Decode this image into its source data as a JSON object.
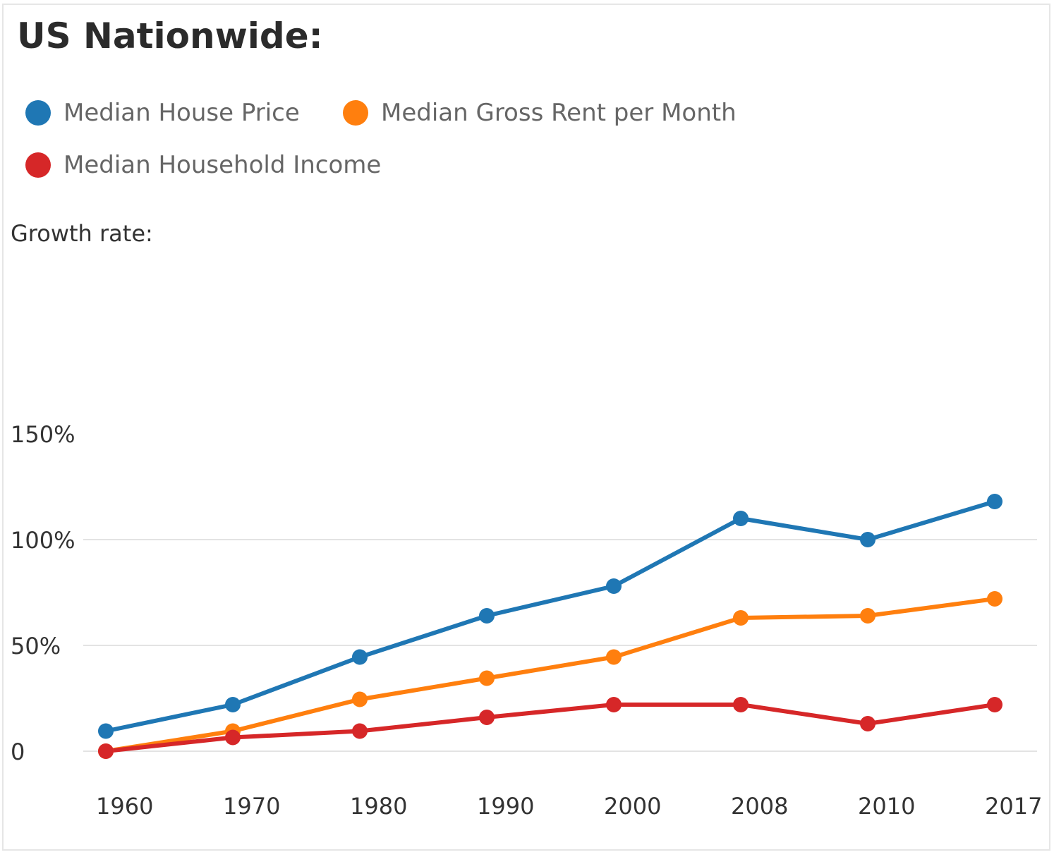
{
  "title": "US Nationwide:",
  "chart_data": {
    "type": "line",
    "title": "US Nationwide:",
    "ylabel": "Growth rate:",
    "xlabel": "",
    "categories": [
      "1960",
      "1970",
      "1980",
      "1990",
      "2000",
      "2008",
      "2010",
      "2017"
    ],
    "yticks": [
      {
        "value": 0,
        "label": "0"
      },
      {
        "value": 50,
        "label": "50%"
      },
      {
        "value": 100,
        "label": "100%"
      },
      {
        "value": 150,
        "label": "150%"
      }
    ],
    "ylim": [
      0,
      150
    ],
    "grid": true,
    "legend_position": "top-left",
    "series": [
      {
        "name": "Median House Price",
        "color": "#1f77b4",
        "values": [
          9.5,
          22,
          44.5,
          64,
          78,
          110,
          100,
          118
        ]
      },
      {
        "name": "Median Gross Rent per Month",
        "color": "#ff7f0e",
        "values": [
          0,
          9.5,
          24.5,
          34.5,
          44.5,
          63,
          64,
          72
        ]
      },
      {
        "name": "Median Household Income",
        "color": "#d62728",
        "values": [
          0,
          6.5,
          9.5,
          16,
          22,
          22,
          13,
          22
        ]
      }
    ]
  }
}
